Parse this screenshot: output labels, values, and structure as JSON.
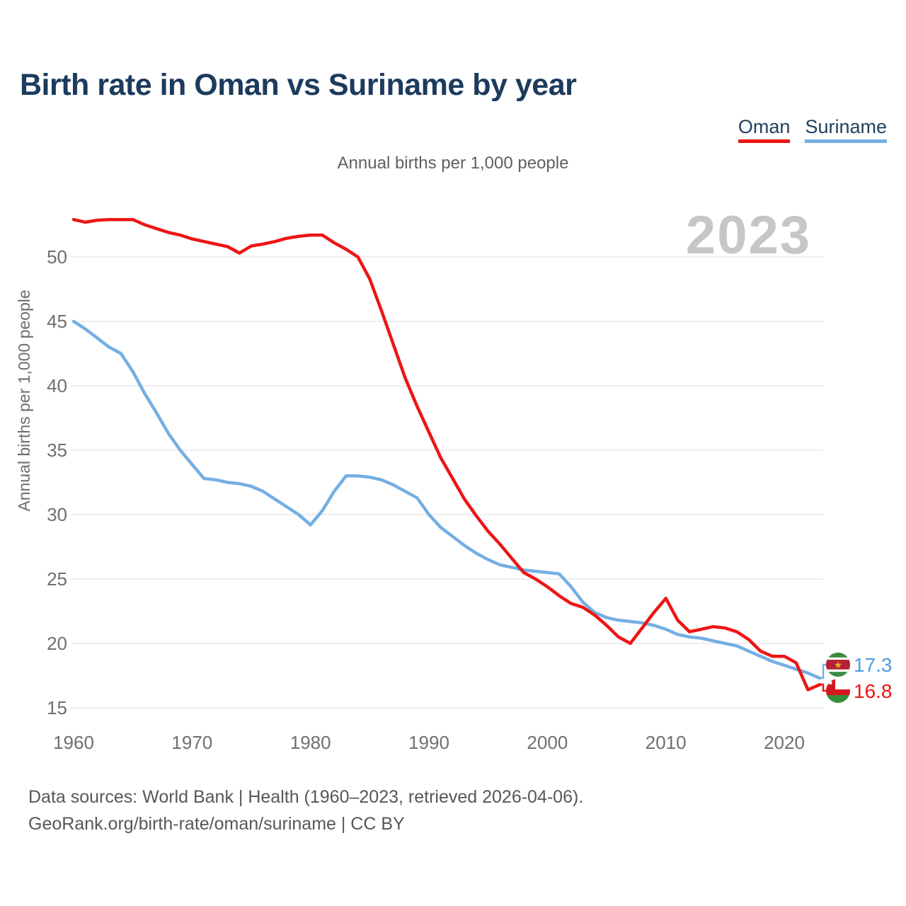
{
  "title": "Birth rate in Oman vs Suriname by year",
  "subtitle": "Annual births per 1,000 people",
  "watermark": "2023",
  "y_axis_title": "Annual births per 1,000 people",
  "legend": {
    "items": [
      {
        "label": "Oman",
        "color": "#ed1515"
      },
      {
        "label": "Suriname",
        "color": "#74afe3"
      }
    ]
  },
  "end_labels": [
    {
      "series": "Suriname",
      "value": "17.3",
      "color": "#4d9de5",
      "flag": "suriname-flag"
    },
    {
      "series": "Oman",
      "value": "16.8",
      "color": "#ed1515",
      "flag": "oman-flag"
    }
  ],
  "footer": {
    "line1": "Data sources: World Bank | Health (1960–2023, retrieved 2026-04-06).",
    "line2": "GeoRank.org/birth-rate/oman/suriname | CC BY"
  },
  "chart_data": {
    "type": "line",
    "title": "Birth rate in Oman vs Suriname by year",
    "ylabel": "Annual births per 1,000 people",
    "xlim": [
      1960,
      2023
    ],
    "ylim": [
      15,
      53.5
    ],
    "x_ticks": [
      1960,
      1970,
      1980,
      1990,
      2000,
      2010,
      2020
    ],
    "y_ticks": [
      15,
      20,
      25,
      30,
      35,
      40,
      45,
      50
    ],
    "grid": true,
    "legend_position": "top-right",
    "x": [
      1960,
      1961,
      1962,
      1963,
      1964,
      1965,
      1966,
      1967,
      1968,
      1969,
      1970,
      1971,
      1972,
      1973,
      1974,
      1975,
      1976,
      1977,
      1978,
      1979,
      1980,
      1981,
      1982,
      1983,
      1984,
      1985,
      1986,
      1987,
      1988,
      1989,
      1990,
      1991,
      1992,
      1993,
      1994,
      1995,
      1996,
      1997,
      1998,
      1999,
      2000,
      2001,
      2002,
      2003,
      2004,
      2005,
      2006,
      2007,
      2008,
      2009,
      2010,
      2011,
      2012,
      2013,
      2014,
      2015,
      2016,
      2017,
      2018,
      2019,
      2020,
      2021,
      2022,
      2023
    ],
    "series": [
      {
        "name": "Oman",
        "color": "#ed1515",
        "values": [
          52.9,
          52.7,
          52.85,
          52.9,
          52.9,
          52.9,
          52.5,
          52.2,
          51.9,
          51.7,
          51.4,
          51.2,
          51.0,
          50.8,
          50.3,
          50.85,
          51.0,
          51.2,
          51.45,
          51.6,
          51.7,
          51.7,
          51.1,
          50.6,
          50.0,
          48.3,
          45.8,
          43.2,
          40.6,
          38.4,
          36.4,
          34.4,
          32.8,
          31.2,
          29.9,
          28.7,
          27.7,
          26.6,
          25.5,
          25.0,
          24.4,
          23.7,
          23.1,
          22.8,
          22.2,
          21.4,
          20.5,
          20.0,
          21.2,
          22.4,
          23.5,
          21.8,
          20.9,
          21.1,
          21.3,
          21.2,
          20.9,
          20.3,
          19.4,
          19.0,
          19.0,
          18.5,
          16.4,
          16.8
        ]
      },
      {
        "name": "Suriname",
        "color": "#74afe3",
        "values": [
          45.0,
          44.4,
          43.7,
          43.0,
          42.5,
          41.1,
          39.4,
          37.9,
          36.3,
          35.0,
          33.9,
          32.8,
          32.7,
          32.5,
          32.4,
          32.2,
          31.8,
          31.2,
          30.6,
          30.0,
          29.2,
          30.3,
          31.8,
          33.0,
          33.0,
          32.9,
          32.7,
          32.3,
          31.8,
          31.3,
          30.0,
          29.0,
          28.3,
          27.6,
          27.0,
          26.5,
          26.1,
          25.9,
          25.7,
          25.6,
          25.5,
          25.4,
          24.4,
          23.2,
          22.4,
          22.0,
          21.8,
          21.7,
          21.6,
          21.4,
          21.1,
          20.7,
          20.5,
          20.4,
          20.2,
          20.0,
          19.8,
          19.4,
          19.0,
          18.6,
          18.3,
          18.0,
          17.7,
          17.3
        ]
      }
    ]
  }
}
